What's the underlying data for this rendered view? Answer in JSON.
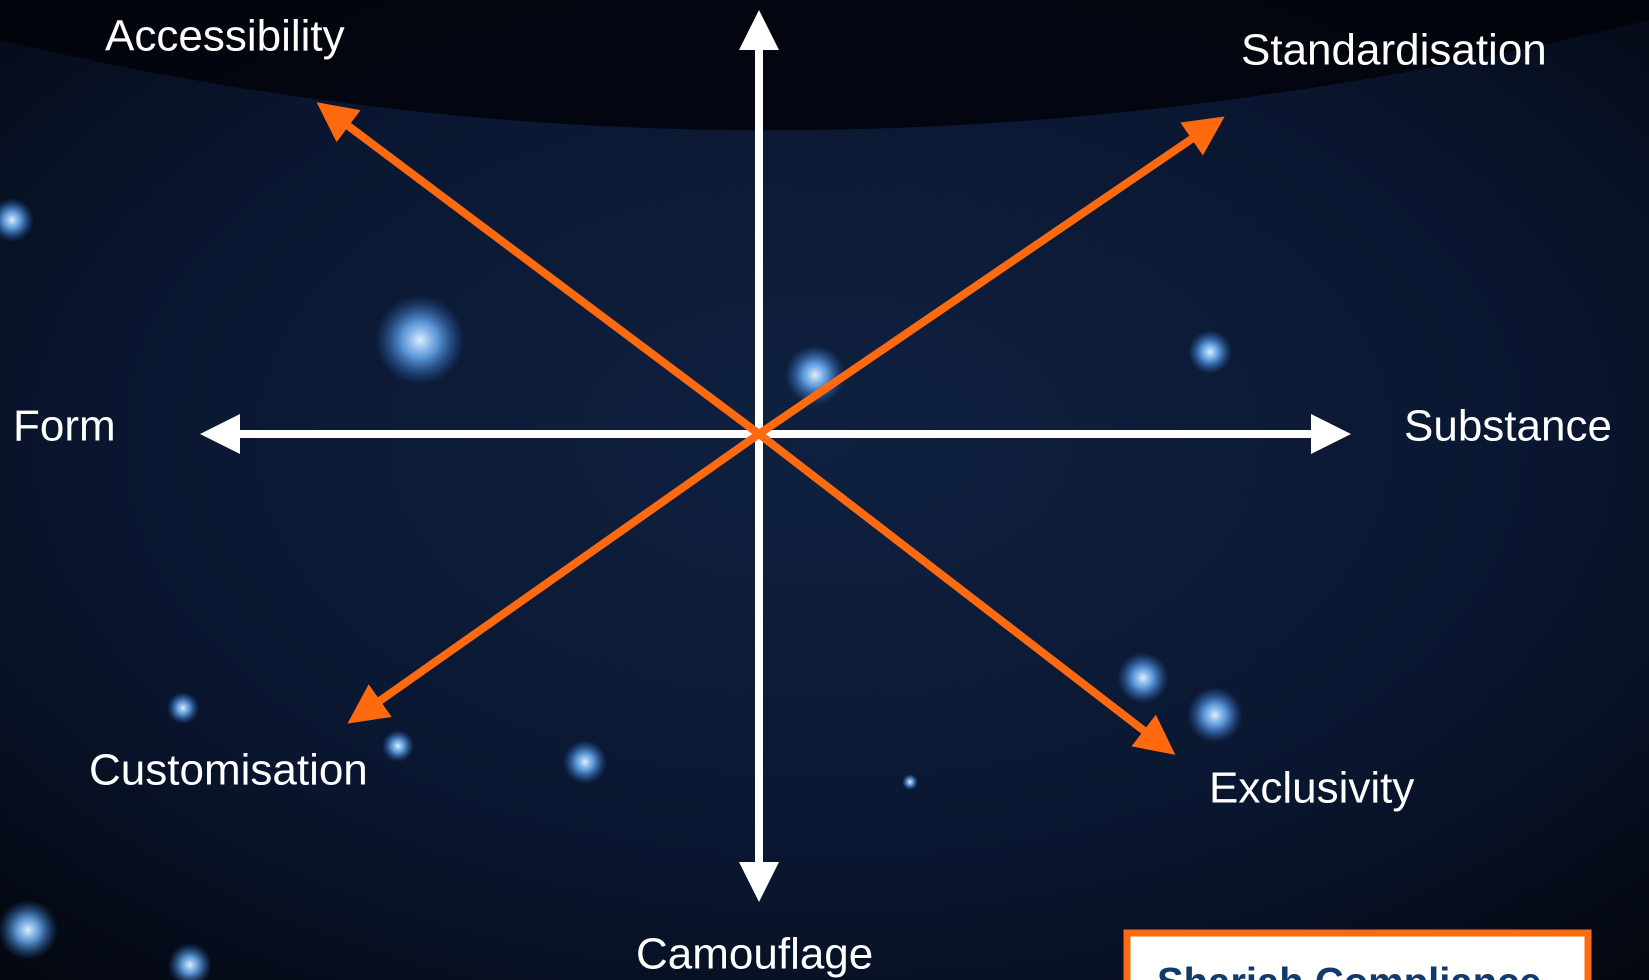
{
  "labels": {
    "top_left": "Accessibility",
    "top_right": "Standardisation",
    "left": "Form",
    "right": "Substance",
    "bottom_left": "Customisation",
    "bottom_right": "Exclusivity",
    "bottom": "Camouflage"
  },
  "box": {
    "text": "Shariah Compliance"
  }
}
